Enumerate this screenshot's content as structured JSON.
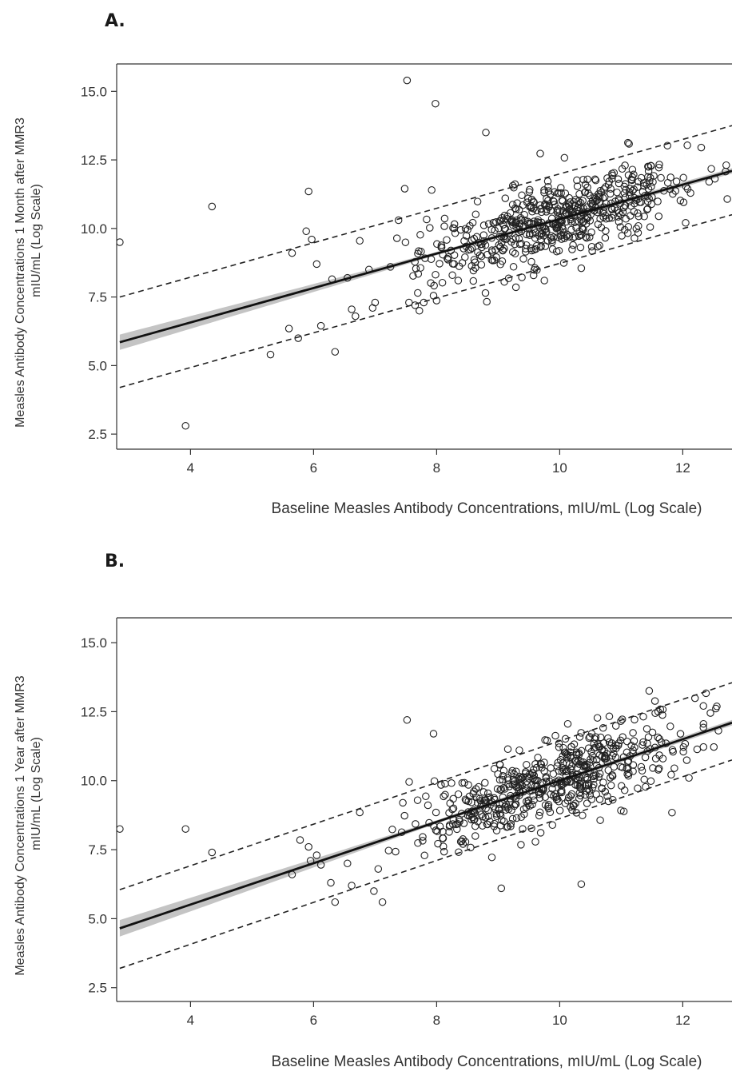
{
  "chart_data": [
    {
      "type": "scatter",
      "panel_label": "A.",
      "xlabel": "Baseline Measles Antibody Concentrations, mIU/mL (Log Scale)",
      "ylabel_line1": "Measles Antibody Concentrations 1 Month after MMR3",
      "ylabel_line2": "mIU/mL (Log Scale)",
      "xlim": [
        2.8,
        12.8
      ],
      "ylim": [
        1.95,
        16.0
      ],
      "xticks": [
        4,
        6,
        8,
        10,
        12
      ],
      "yticks": [
        2.5,
        5.0,
        7.5,
        10.0,
        12.5,
        15.0
      ],
      "fit_line": {
        "x": [
          2.85,
          12.8
        ],
        "y": [
          5.85,
          12.1
        ]
      },
      "confidence_band_halfwidth": {
        "x": [
          2.85,
          8.0,
          12.8
        ],
        "y": [
          0.28,
          0.06,
          0.1
        ]
      },
      "prediction_upper": {
        "x": [
          2.85,
          12.8
        ],
        "y": [
          7.5,
          13.75
        ]
      },
      "prediction_lower": {
        "x": [
          2.85,
          12.8
        ],
        "y": [
          4.2,
          10.5
        ]
      },
      "outliers": [
        {
          "x": 2.85,
          "y": 9.5
        },
        {
          "x": 3.92,
          "y": 2.8
        },
        {
          "x": 4.35,
          "y": 10.8
        },
        {
          "x": 5.3,
          "y": 5.4
        },
        {
          "x": 5.6,
          "y": 6.35
        },
        {
          "x": 5.75,
          "y": 6.0
        },
        {
          "x": 5.65,
          "y": 9.1
        },
        {
          "x": 5.88,
          "y": 9.9
        },
        {
          "x": 5.92,
          "y": 11.35
        },
        {
          "x": 5.97,
          "y": 9.6
        },
        {
          "x": 6.05,
          "y": 8.7
        },
        {
          "x": 6.12,
          "y": 6.45
        },
        {
          "x": 6.3,
          "y": 8.15
        },
        {
          "x": 6.35,
          "y": 5.5
        },
        {
          "x": 6.55,
          "y": 8.2
        },
        {
          "x": 6.68,
          "y": 6.8
        },
        {
          "x": 6.62,
          "y": 7.05
        },
        {
          "x": 6.75,
          "y": 9.55
        },
        {
          "x": 6.9,
          "y": 8.5
        },
        {
          "x": 6.96,
          "y": 7.1
        },
        {
          "x": 7.0,
          "y": 7.3
        },
        {
          "x": 7.25,
          "y": 8.6
        },
        {
          "x": 7.38,
          "y": 10.3
        },
        {
          "x": 7.48,
          "y": 11.45
        },
        {
          "x": 7.52,
          "y": 15.4
        },
        {
          "x": 7.55,
          "y": 7.3
        },
        {
          "x": 7.65,
          "y": 7.2
        },
        {
          "x": 7.72,
          "y": 7.0
        },
        {
          "x": 7.98,
          "y": 14.55
        },
        {
          "x": 7.92,
          "y": 11.4
        },
        {
          "x": 7.95,
          "y": 7.55
        },
        {
          "x": 8.8,
          "y": 13.5
        },
        {
          "x": 9.1,
          "y": 8.05
        },
        {
          "x": 9.75,
          "y": 8.1
        },
        {
          "x": 10.35,
          "y": 8.55
        },
        {
          "x": 10.85,
          "y": 12.0
        },
        {
          "x": 10.95,
          "y": 11.8
        },
        {
          "x": 12.3,
          "y": 12.95
        }
      ],
      "cloud_center": {
        "x": 9.9,
        "y": 10.15
      },
      "cloud_residual_sd": 0.68
    },
    {
      "type": "scatter",
      "panel_label": "B.",
      "xlabel": "Baseline Measles Antibody Concentrations, mIU/mL (Log Scale)",
      "ylabel_line1": "Measles Antibody Concentrations 1 Year after MMR3",
      "ylabel_line2": "mIU/mL (Log Scale)",
      "xlim": [
        2.8,
        12.8
      ],
      "ylim": [
        2.0,
        15.9
      ],
      "xticks": [
        4,
        6,
        8,
        10,
        12
      ],
      "yticks": [
        2.5,
        5.0,
        7.5,
        10.0,
        12.5,
        15.0
      ],
      "fit_line": {
        "x": [
          2.85,
          12.8
        ],
        "y": [
          4.65,
          12.1
        ]
      },
      "confidence_band_halfwidth": {
        "x": [
          2.85,
          8.0,
          12.8
        ],
        "y": [
          0.3,
          0.06,
          0.1
        ]
      },
      "prediction_upper": {
        "x": [
          2.85,
          12.8
        ],
        "y": [
          6.05,
          13.55
        ]
      },
      "prediction_lower": {
        "x": [
          2.85,
          12.8
        ],
        "y": [
          3.2,
          10.75
        ]
      },
      "outliers": [
        {
          "x": 2.85,
          "y": 8.25
        },
        {
          "x": 3.92,
          "y": 8.25
        },
        {
          "x": 4.35,
          "y": 7.4
        },
        {
          "x": 5.65,
          "y": 6.6
        },
        {
          "x": 5.78,
          "y": 7.85
        },
        {
          "x": 5.92,
          "y": 7.6
        },
        {
          "x": 5.95,
          "y": 7.1
        },
        {
          "x": 6.05,
          "y": 7.3
        },
        {
          "x": 6.12,
          "y": 6.95
        },
        {
          "x": 6.28,
          "y": 6.3
        },
        {
          "x": 6.35,
          "y": 5.6
        },
        {
          "x": 6.55,
          "y": 7.0
        },
        {
          "x": 6.62,
          "y": 6.2
        },
        {
          "x": 6.75,
          "y": 8.85
        },
        {
          "x": 6.98,
          "y": 6.0
        },
        {
          "x": 7.05,
          "y": 6.8
        },
        {
          "x": 7.12,
          "y": 5.6
        },
        {
          "x": 7.45,
          "y": 9.2
        },
        {
          "x": 7.52,
          "y": 12.2
        },
        {
          "x": 7.95,
          "y": 11.7
        },
        {
          "x": 9.05,
          "y": 6.1
        },
        {
          "x": 10.35,
          "y": 6.25
        },
        {
          "x": 11.6,
          "y": 12.5
        },
        {
          "x": 12.45,
          "y": 12.45
        },
        {
          "x": 12.1,
          "y": 10.1
        }
      ],
      "cloud_center": {
        "x": 9.9,
        "y": 9.95
      },
      "cloud_residual_sd": 0.72
    }
  ]
}
